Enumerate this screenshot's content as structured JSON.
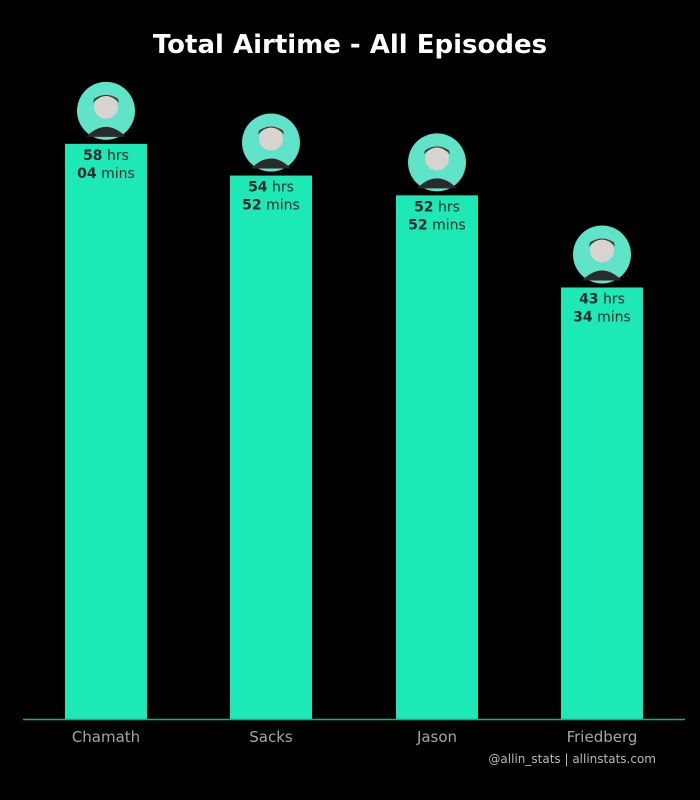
{
  "chart_data": {
    "type": "bar",
    "title": "Total Airtime - All Episodes",
    "xlabel": "",
    "ylabel": "",
    "categories": [
      "Chamath",
      "Sacks",
      "Jason",
      "Friedberg"
    ],
    "values_hours": [
      58,
      54,
      52,
      43
    ],
    "values_minutes": [
      4,
      52,
      52,
      34
    ],
    "labels": [
      {
        "hrs": "58",
        "hrs_unit": "hrs",
        "mins": "04",
        "mins_unit": "mins"
      },
      {
        "hrs": "54",
        "hrs_unit": "hrs",
        "mins": "52",
        "mins_unit": "mins"
      },
      {
        "hrs": "52",
        "hrs_unit": "hrs",
        "mins": "52",
        "mins_unit": "mins"
      },
      {
        "hrs": "43",
        "hrs_unit": "hrs",
        "mins": "34",
        "mins_unit": "mins"
      }
    ],
    "grid": false,
    "bar_color": "#1de9b6",
    "avatar_bg_color": "#5fe3c9",
    "axis_color": "#1fa980"
  },
  "credit": "@allin_stats | allinstats.com"
}
